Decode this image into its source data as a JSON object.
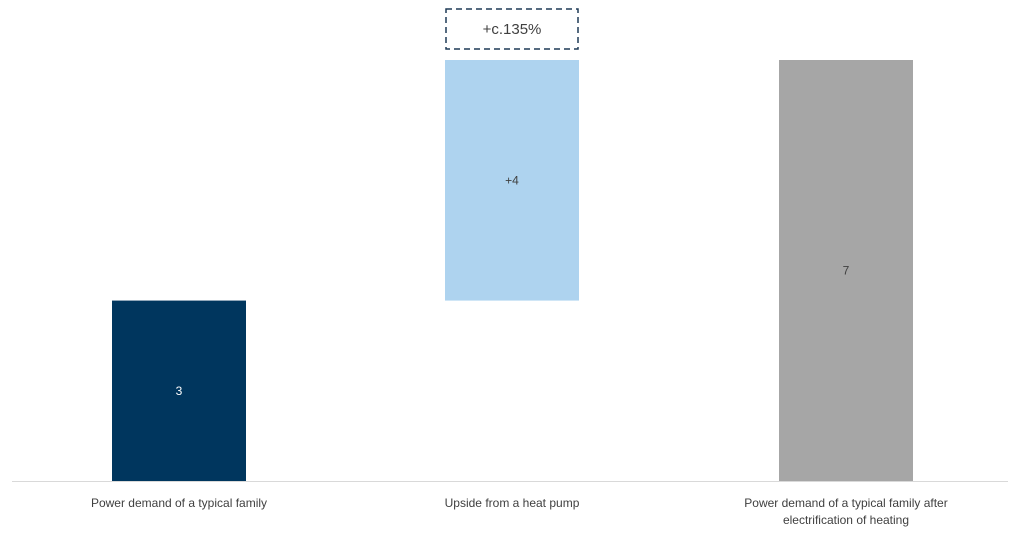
{
  "chart_data": {
    "type": "bar",
    "subtype": "waterfall",
    "categories": [
      [
        "Power demand of a typical family"
      ],
      [
        "Upside from a heat pump"
      ],
      [
        "Power demand of a typical family after",
        "electrification of heating"
      ]
    ],
    "bars": [
      {
        "start": 0,
        "end": 3,
        "label": "3",
        "color": "#00365e",
        "label_color": "#ffffff"
      },
      {
        "start": 3,
        "end": 7,
        "label": "+4",
        "color": "#aed3ef",
        "label_color": "#404040"
      },
      {
        "start": 0,
        "end": 7,
        "label": "7",
        "color": "#a6a6a6",
        "label_color": "#404040"
      }
    ],
    "callout": {
      "bar_index": 1,
      "text": "+c.135%",
      "border_color": "#1f3a56",
      "style": "dashed"
    },
    "ylim": [
      0,
      7
    ],
    "grid": false,
    "legend": "none",
    "axis_color": "#d9d9d9"
  }
}
